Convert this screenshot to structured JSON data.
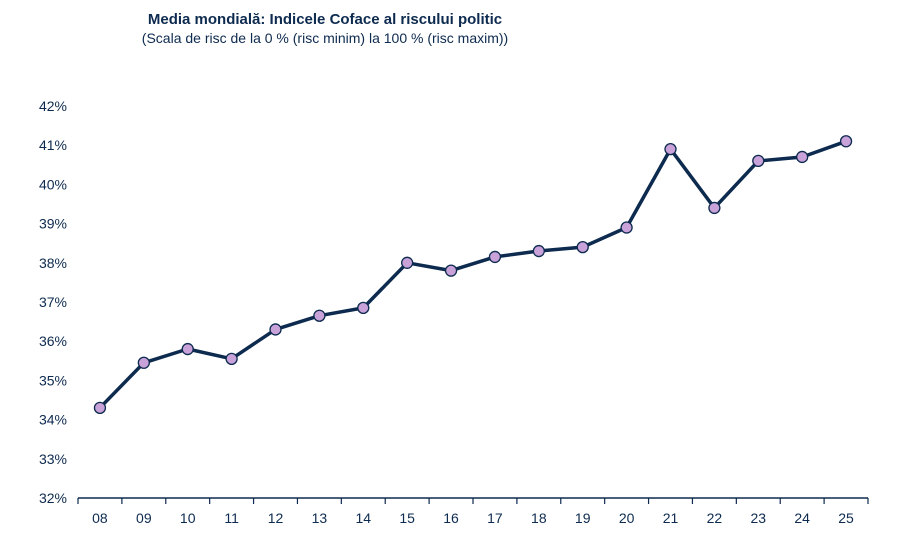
{
  "chart_data": {
    "type": "line",
    "title": "Media mondială: Indicele Coface al riscului politic",
    "subtitle": "(Scala de risc de la 0 % (risc minim) la 100 % (risc maxim))",
    "xlabel": "",
    "ylabel": "",
    "categories": [
      "08",
      "09",
      "10",
      "11",
      "12",
      "13",
      "14",
      "15",
      "16",
      "17",
      "18",
      "19",
      "20",
      "21",
      "22",
      "23",
      "24",
      "25"
    ],
    "series": [
      {
        "name": "Indicele Coface al riscului politic",
        "values": [
          34.3,
          35.45,
          35.8,
          35.55,
          36.3,
          36.65,
          36.85,
          38.0,
          37.8,
          38.15,
          38.3,
          38.4,
          38.9,
          40.9,
          39.4,
          40.6,
          40.7,
          41.1
        ]
      }
    ],
    "ylim": [
      32,
      42
    ],
    "yticks": [
      "32%",
      "33%",
      "34%",
      "35%",
      "36%",
      "37%",
      "38%",
      "39%",
      "40%",
      "41%",
      "42%"
    ],
    "grid": false,
    "colors": {
      "line": "#0d2a4f",
      "marker_fill": "#c8a2d8",
      "marker_stroke": "#0d2a4f",
      "axis": "#0d2a4f"
    }
  }
}
